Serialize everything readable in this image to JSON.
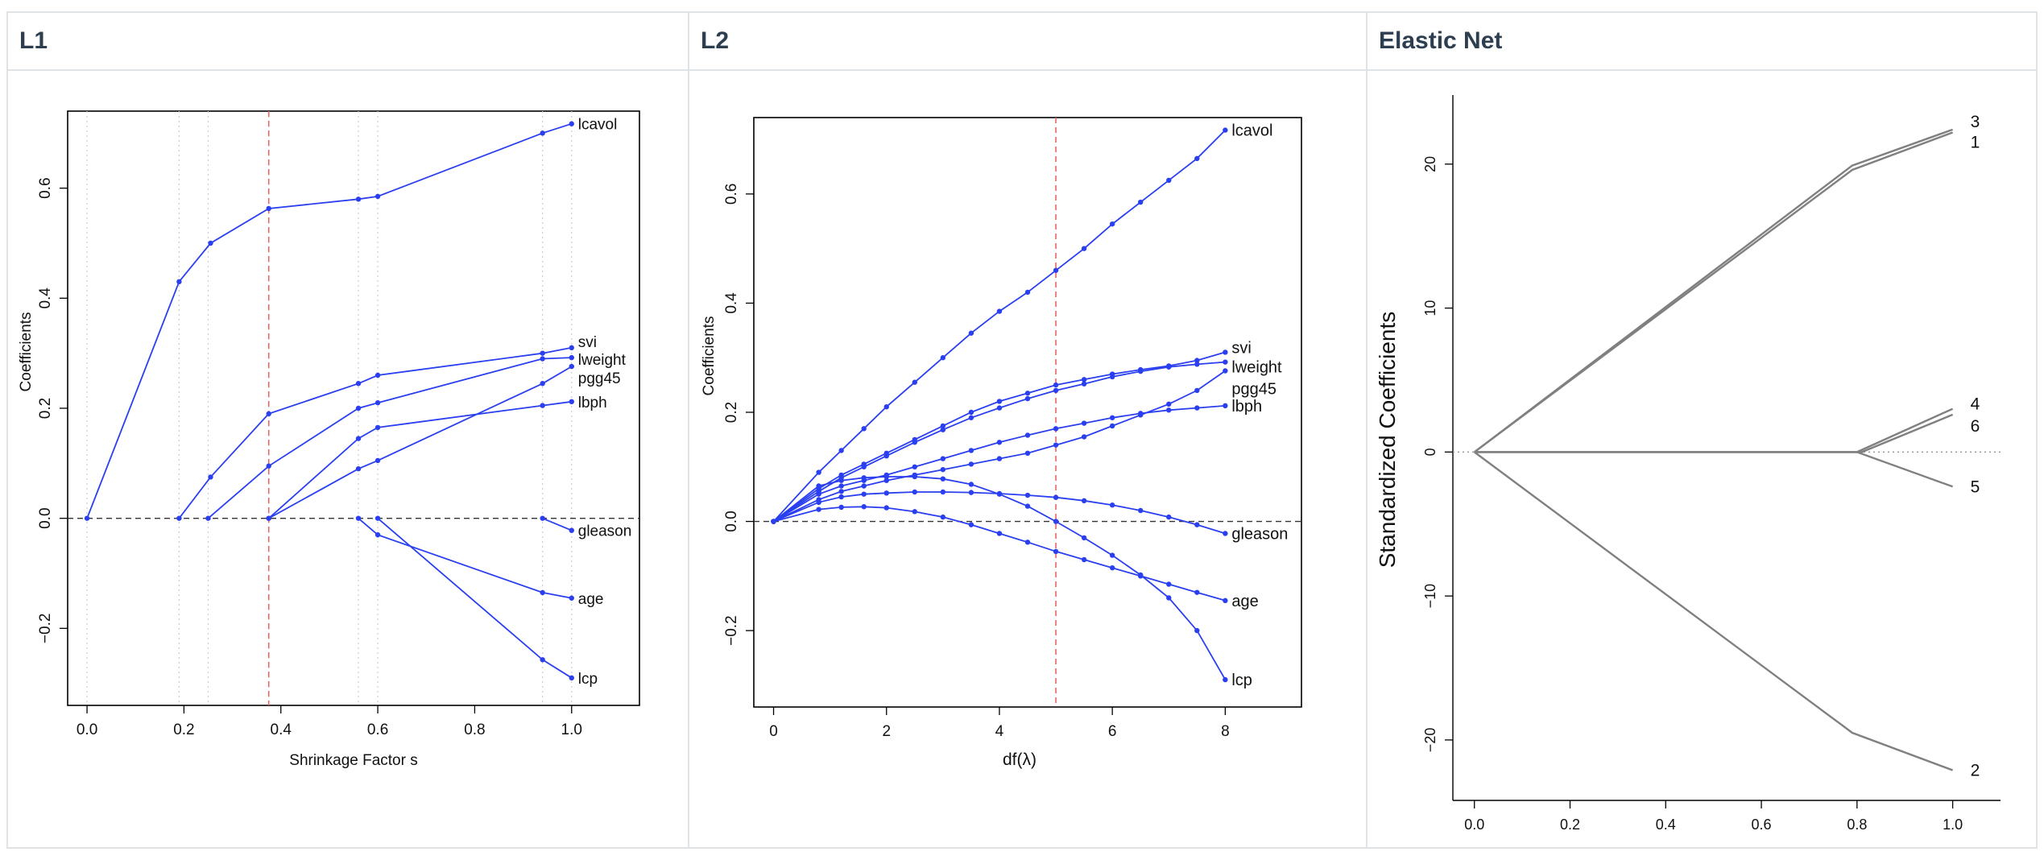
{
  "panels": [
    {
      "title": "L1"
    },
    {
      "title": "L2"
    },
    {
      "title": "Elastic Net"
    }
  ],
  "colors": {
    "path": "#2a3ff0",
    "ref": "#e8656a",
    "gray": "#808080",
    "axis": "#000000"
  },
  "chart_data": [
    {
      "type": "line",
      "title": "",
      "xlabel": "Shrinkage Factor s",
      "ylabel": "Coefficients",
      "xlim": [
        -0.04,
        1.14
      ],
      "ylim": [
        -0.34,
        0.74
      ],
      "xticks": [
        "0.0",
        "0.2",
        "0.4",
        "0.6",
        "0.8",
        "1.0"
      ],
      "yticks": [
        "−0.2",
        "0.0",
        "0.2",
        "0.4",
        "0.6"
      ],
      "xtick_values": [
        0,
        0.2,
        0.4,
        0.6,
        0.8,
        1.0
      ],
      "ytick_values": [
        -0.2,
        0,
        0.2,
        0.4,
        0.6
      ],
      "vline": 0.375,
      "gridlines_x": [
        0,
        0.19,
        0.25,
        0.375,
        0.56,
        0.6,
        0.94,
        1.0
      ],
      "series": [
        {
          "name": "lcavol",
          "x": [
            0,
            0.19,
            0.255,
            0.375,
            0.56,
            0.6,
            0.94,
            1.0
          ],
          "y": [
            0,
            0.43,
            0.5,
            0.563,
            0.58,
            0.585,
            0.7,
            0.717
          ]
        },
        {
          "name": "svi",
          "x": [
            0.19,
            0.255,
            0.375,
            0.56,
            0.6,
            0.94,
            1.0
          ],
          "y": [
            0,
            0.075,
            0.19,
            0.245,
            0.26,
            0.3,
            0.31
          ]
        },
        {
          "name": "lweight",
          "x": [
            0.25,
            0.375,
            0.56,
            0.6,
            0.94,
            1.0
          ],
          "y": [
            0,
            0.095,
            0.2,
            0.21,
            0.29,
            0.292
          ]
        },
        {
          "name": "pgg45",
          "x": [
            0.375,
            0.56,
            0.6,
            0.94,
            1.0
          ],
          "y": [
            0,
            0.09,
            0.105,
            0.245,
            0.276
          ]
        },
        {
          "name": "lbph",
          "x": [
            0.375,
            0.56,
            0.6,
            0.94,
            1.0
          ],
          "y": [
            0,
            0.145,
            0.165,
            0.205,
            0.212
          ]
        },
        {
          "name": "gleason",
          "x": [
            0.94,
            1.0
          ],
          "y": [
            0,
            -0.022
          ]
        },
        {
          "name": "age",
          "x": [
            0.56,
            0.6,
            0.94,
            1.0
          ],
          "y": [
            0,
            -0.03,
            -0.135,
            -0.145
          ]
        },
        {
          "name": "lcp",
          "x": [
            0.6,
            0.94,
            1.0
          ],
          "y": [
            0,
            -0.257,
            -0.29
          ]
        }
      ]
    },
    {
      "type": "line",
      "title": "",
      "xlabel": "df(λ)",
      "ylabel": "Coefficients",
      "xlim": [
        -0.35,
        9.35
      ],
      "ylim": [
        -0.34,
        0.74
      ],
      "xticks": [
        "0",
        "2",
        "4",
        "6",
        "8"
      ],
      "yticks": [
        "−0.2",
        "0.0",
        "0.2",
        "0.4",
        "0.6"
      ],
      "xtick_values": [
        0,
        2,
        4,
        6,
        8
      ],
      "ytick_values": [
        -0.2,
        0,
        0.2,
        0.4,
        0.6
      ],
      "vline": 5.0,
      "series": [
        {
          "name": "lcavol",
          "x": [
            0,
            0.8,
            1.2,
            1.6,
            2.0,
            2.5,
            3.0,
            3.5,
            4.0,
            4.5,
            5.0,
            5.5,
            6.0,
            6.5,
            7.0,
            7.5,
            8.0
          ],
          "y": [
            0,
            0.09,
            0.13,
            0.17,
            0.21,
            0.255,
            0.3,
            0.345,
            0.385,
            0.42,
            0.46,
            0.5,
            0.545,
            0.585,
            0.625,
            0.665,
            0.717
          ]
        },
        {
          "name": "svi",
          "x": [
            0,
            0.8,
            1.2,
            1.6,
            2.0,
            2.5,
            3.0,
            3.5,
            4.0,
            4.5,
            5.0,
            5.5,
            6.0,
            6.5,
            7.0,
            7.5,
            8.0
          ],
          "y": [
            0,
            0.06,
            0.085,
            0.105,
            0.125,
            0.15,
            0.175,
            0.2,
            0.22,
            0.235,
            0.25,
            0.26,
            0.27,
            0.278,
            0.285,
            0.295,
            0.31
          ]
        },
        {
          "name": "lweight",
          "x": [
            0,
            0.8,
            1.2,
            1.6,
            2.0,
            2.5,
            3.0,
            3.5,
            4.0,
            4.5,
            5.0,
            5.5,
            6.0,
            6.5,
            7.0,
            7.5,
            8.0
          ],
          "y": [
            0,
            0.055,
            0.08,
            0.1,
            0.12,
            0.145,
            0.168,
            0.19,
            0.208,
            0.225,
            0.24,
            0.252,
            0.265,
            0.275,
            0.283,
            0.288,
            0.292
          ]
        },
        {
          "name": "pgg45",
          "x": [
            0,
            0.8,
            1.2,
            1.6,
            2.0,
            2.5,
            3.0,
            3.5,
            4.0,
            4.5,
            5.0,
            5.5,
            6.0,
            6.5,
            7.0,
            7.5,
            8.0
          ],
          "y": [
            0,
            0.04,
            0.055,
            0.065,
            0.075,
            0.085,
            0.095,
            0.105,
            0.115,
            0.125,
            0.14,
            0.155,
            0.175,
            0.195,
            0.215,
            0.24,
            0.276
          ]
        },
        {
          "name": "lbph",
          "x": [
            0,
            0.8,
            1.2,
            1.6,
            2.0,
            2.5,
            3.0,
            3.5,
            4.0,
            4.5,
            5.0,
            5.5,
            6.0,
            6.5,
            7.0,
            7.5,
            8.0
          ],
          "y": [
            0,
            0.05,
            0.065,
            0.075,
            0.085,
            0.1,
            0.115,
            0.13,
            0.145,
            0.158,
            0.17,
            0.18,
            0.19,
            0.198,
            0.204,
            0.208,
            0.212
          ]
        },
        {
          "name": "gleason",
          "x": [
            0,
            0.8,
            1.2,
            1.6,
            2.0,
            2.5,
            3.0,
            3.5,
            4.0,
            4.5,
            5.0,
            5.5,
            6.0,
            6.5,
            7.0,
            7.5,
            8.0
          ],
          "y": [
            0,
            0.035,
            0.045,
            0.05,
            0.052,
            0.054,
            0.054,
            0.053,
            0.051,
            0.048,
            0.044,
            0.038,
            0.03,
            0.02,
            0.008,
            -0.006,
            -0.022
          ]
        },
        {
          "name": "age",
          "x": [
            0,
            0.8,
            1.2,
            1.6,
            2.0,
            2.5,
            3.0,
            3.5,
            4.0,
            4.5,
            5.0,
            5.5,
            6.0,
            6.5,
            7.0,
            7.5,
            8.0
          ],
          "y": [
            0,
            0.022,
            0.026,
            0.027,
            0.025,
            0.018,
            0.008,
            -0.006,
            -0.022,
            -0.038,
            -0.055,
            -0.07,
            -0.085,
            -0.1,
            -0.115,
            -0.13,
            -0.145
          ]
        },
        {
          "name": "lcp",
          "x": [
            0,
            0.8,
            1.2,
            1.6,
            2.0,
            2.5,
            3.0,
            3.5,
            4.0,
            4.5,
            5.0,
            5.5,
            6.0,
            6.5,
            7.0,
            7.5,
            8.0
          ],
          "y": [
            0,
            0.065,
            0.075,
            0.08,
            0.082,
            0.082,
            0.078,
            0.068,
            0.05,
            0.028,
            0.0,
            -0.03,
            -0.062,
            -0.098,
            -0.14,
            -0.2,
            -0.29
          ]
        }
      ]
    },
    {
      "type": "line",
      "title": "",
      "xlabel": "",
      "ylabel": "Standardized Coefficients",
      "xlim": [
        -0.045,
        1.1
      ],
      "ylim": [
        -24.2,
        24.8
      ],
      "xticks": [
        "0.0",
        "0.2",
        "0.4",
        "0.6",
        "0.8",
        "1.0"
      ],
      "yticks": [
        "−20",
        "−10",
        "0",
        "10",
        "20"
      ],
      "xtick_values": [
        0,
        0.2,
        0.4,
        0.6,
        0.8,
        1.0
      ],
      "ytick_values": [
        -20,
        -10,
        0,
        10,
        20
      ],
      "hline": 0,
      "series": [
        {
          "name": "3",
          "x": [
            0,
            0.79,
            1.0
          ],
          "y": [
            0,
            19.9,
            22.4
          ]
        },
        {
          "name": "1",
          "x": [
            0,
            0.79,
            1.0
          ],
          "y": [
            0,
            19.6,
            22.2
          ]
        },
        {
          "name": "4",
          "x": [
            0,
            0.8,
            1.0
          ],
          "y": [
            0,
            0,
            3.0
          ]
        },
        {
          "name": "6",
          "x": [
            0,
            0.81,
            1.0
          ],
          "y": [
            0,
            0,
            2.6
          ]
        },
        {
          "name": "5",
          "x": [
            0,
            0.8,
            1.0
          ],
          "y": [
            0,
            0,
            -2.4
          ]
        },
        {
          "name": "2",
          "x": [
            0,
            0.79,
            1.0
          ],
          "y": [
            0,
            -19.5,
            -22.1
          ]
        }
      ]
    }
  ]
}
